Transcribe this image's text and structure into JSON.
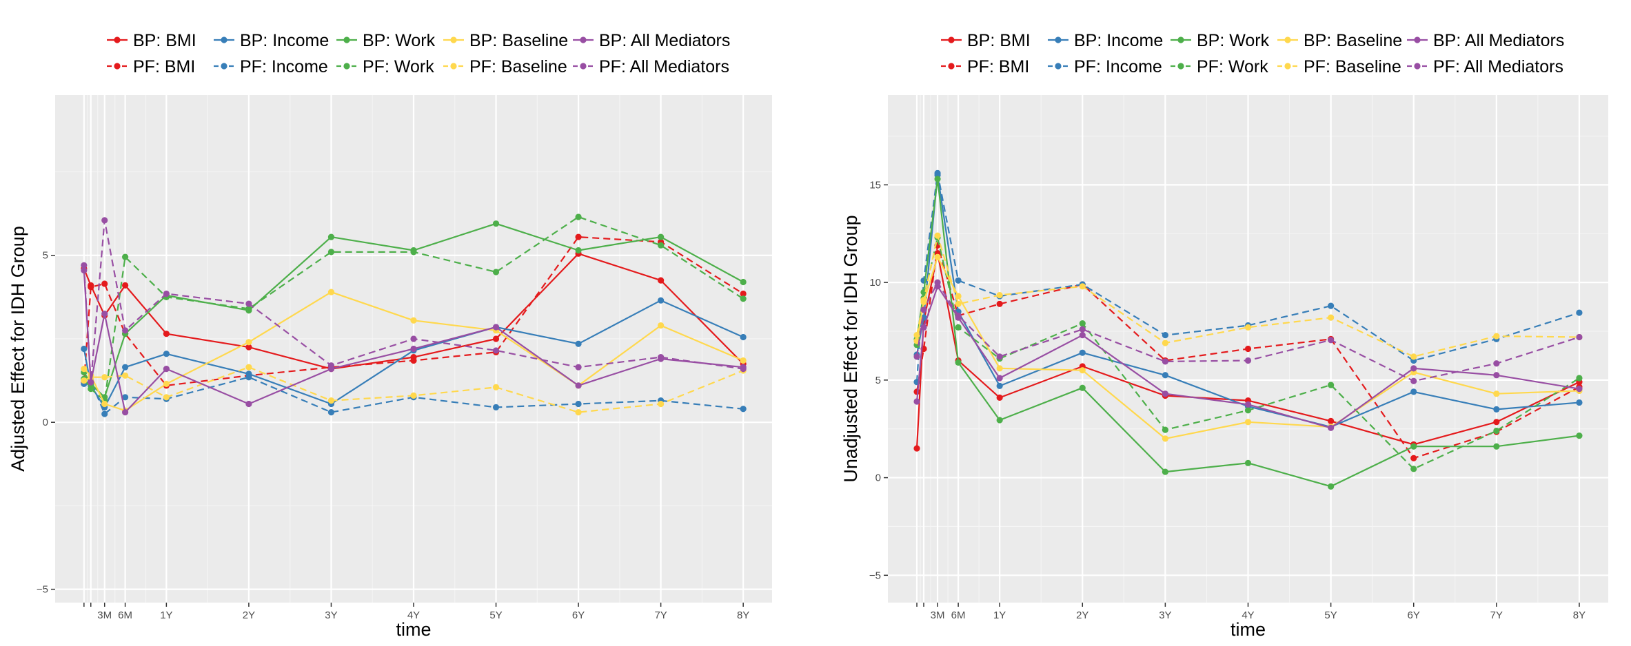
{
  "colors": {
    "BMI": "#e41a1c",
    "Income": "#377eb8",
    "Work": "#4daf4a",
    "Baseline": "#ffd84d",
    "All Mediators": "#984ea3",
    "panel": "#ebebeb",
    "grid_major": "#ffffff",
    "grid_minor": "#f5f5f5"
  },
  "chart_data": [
    {
      "type": "line",
      "title": "",
      "xlabel": "time",
      "ylabel": "Adjusted Effect for IDH Group",
      "x": [
        0.0,
        0.083,
        0.25,
        0.5,
        1,
        2,
        3,
        4,
        5,
        6,
        7,
        8
      ],
      "x_ticks": [
        {
          "x": 0,
          "label": ""
        },
        {
          "x": 0.083,
          "label": ""
        },
        {
          "x": 0.25,
          "label": "3M"
        },
        {
          "x": 0.5,
          "label": "6M"
        },
        {
          "x": 1,
          "label": "1Y"
        },
        {
          "x": 2,
          "label": "2Y"
        },
        {
          "x": 3,
          "label": "3Y"
        },
        {
          "x": 4,
          "label": "4Y"
        },
        {
          "x": 5,
          "label": "5Y"
        },
        {
          "x": 6,
          "label": "6Y"
        },
        {
          "x": 7,
          "label": "7Y"
        },
        {
          "x": 8,
          "label": "8Y"
        }
      ],
      "y_ticks": [
        -5,
        0,
        5
      ],
      "xlim": [
        -0.35,
        8.35
      ],
      "ylim": [
        -5.4,
        9.8
      ],
      "legend": [
        [
          "BP: BMI",
          "BP: Income",
          "BP: Work",
          "BP: Baseline",
          "BP: All Mediators"
        ],
        [
          "PF: BMI",
          "PF: Income",
          "PF: Work",
          "PF: Baseline",
          "PF: All Mediators"
        ]
      ],
      "series": [
        {
          "name": "BP: BMI",
          "group": "BMI",
          "dash": false,
          "values": [
            4.6,
            4.1,
            3.2,
            4.1,
            2.65,
            2.25,
            1.6,
            1.95,
            2.5,
            5.05,
            4.25,
            1.75
          ]
        },
        {
          "name": "PF: BMI",
          "group": "BMI",
          "dash": true,
          "values": [
            1.2,
            4.05,
            4.15,
            2.65,
            1.1,
            1.4,
            1.65,
            1.85,
            2.1,
            5.55,
            5.4,
            3.85
          ]
        },
        {
          "name": "BP: Income",
          "group": "Income",
          "dash": false,
          "values": [
            2.2,
            1.1,
            0.45,
            1.65,
            2.05,
            1.45,
            0.55,
            2.15,
            2.85,
            2.35,
            3.65,
            2.55
          ]
        },
        {
          "name": "PF: Income",
          "group": "Income",
          "dash": true,
          "values": [
            1.15,
            1.25,
            0.25,
            0.75,
            0.7,
            1.35,
            0.3,
            0.75,
            0.45,
            0.55,
            0.65,
            0.4
          ]
        },
        {
          "name": "BP: Work",
          "group": "Work",
          "dash": false,
          "values": [
            1.5,
            1.15,
            0.75,
            2.65,
            3.8,
            3.35,
            5.55,
            5.15,
            5.95,
            5.15,
            5.55,
            4.2
          ]
        },
        {
          "name": "PF: Work",
          "group": "Work",
          "dash": true,
          "values": [
            1.3,
            1.0,
            0.65,
            4.95,
            3.75,
            3.4,
            5.1,
            5.1,
            4.5,
            6.15,
            5.3,
            3.7
          ]
        },
        {
          "name": "BP: Baseline",
          "group": "Baseline",
          "dash": false,
          "values": [
            1.6,
            1.4,
            0.55,
            0.35,
            1.15,
            2.4,
            3.9,
            3.05,
            2.75,
            1.1,
            2.9,
            1.85
          ]
        },
        {
          "name": "PF: Baseline",
          "group": "Baseline",
          "dash": true,
          "values": [
            1.25,
            1.35,
            1.35,
            1.4,
            0.75,
            1.65,
            0.65,
            0.8,
            1.05,
            0.3,
            0.55,
            1.55
          ]
        },
        {
          "name": "BP: All Mediators",
          "group": "All Mediators",
          "dash": false,
          "values": [
            4.55,
            1.2,
            3.25,
            0.3,
            1.6,
            0.55,
            1.6,
            2.2,
            2.85,
            1.1,
            1.9,
            1.65
          ]
        },
        {
          "name": "PF: All Mediators",
          "group": "All Mediators",
          "dash": true,
          "values": [
            4.7,
            1.2,
            6.05,
            2.75,
            3.85,
            3.55,
            1.7,
            2.5,
            2.15,
            1.65,
            1.95,
            1.6
          ]
        }
      ]
    },
    {
      "type": "line",
      "title": "",
      "xlabel": "time",
      "ylabel": "Unadjusted Effect for IDH Group",
      "x": [
        0.0,
        0.083,
        0.25,
        0.5,
        1,
        2,
        3,
        4,
        5,
        6,
        7,
        8
      ],
      "x_ticks": [
        {
          "x": 0,
          "label": ""
        },
        {
          "x": 0.083,
          "label": ""
        },
        {
          "x": 0.25,
          "label": "3M"
        },
        {
          "x": 0.5,
          "label": "6M"
        },
        {
          "x": 1,
          "label": "1Y"
        },
        {
          "x": 2,
          "label": "2Y"
        },
        {
          "x": 3,
          "label": "3Y"
        },
        {
          "x": 4,
          "label": "4Y"
        },
        {
          "x": 5,
          "label": "5Y"
        },
        {
          "x": 6,
          "label": "6Y"
        },
        {
          "x": 7,
          "label": "7Y"
        },
        {
          "x": 8,
          "label": "8Y"
        }
      ],
      "y_ticks": [
        -5,
        0,
        5,
        10,
        15
      ],
      "xlim": [
        -0.35,
        8.35
      ],
      "ylim": [
        -6.4,
        19.6
      ],
      "legend": [
        [
          "BP: BMI",
          "BP: Income",
          "BP: Work",
          "BP: Baseline",
          "BP: All Mediators"
        ],
        [
          "PF: BMI",
          "PF: Income",
          "PF: Work",
          "PF: Baseline",
          "PF: All Mediators"
        ]
      ],
      "series": [
        {
          "name": "BP: BMI",
          "group": "BMI",
          "dash": false,
          "values": [
            1.5,
            8.0,
            11.5,
            6.0,
            4.1,
            5.7,
            4.2,
            3.95,
            2.9,
            1.7,
            2.85,
            4.9
          ]
        },
        {
          "name": "PF: BMI",
          "group": "BMI",
          "dash": true,
          "values": [
            4.4,
            6.6,
            11.9,
            8.3,
            8.9,
            9.9,
            6.0,
            6.6,
            7.1,
            1.0,
            2.35,
            4.65
          ]
        },
        {
          "name": "BP: Income",
          "group": "Income",
          "dash": false,
          "values": [
            6.3,
            8.2,
            15.5,
            8.5,
            4.7,
            6.4,
            5.25,
            3.65,
            2.6,
            4.4,
            3.5,
            3.85
          ]
        },
        {
          "name": "PF: Income",
          "group": "Income",
          "dash": true,
          "values": [
            4.9,
            10.1,
            15.6,
            10.1,
            9.3,
            9.9,
            7.3,
            7.8,
            8.8,
            6.0,
            7.1,
            8.45
          ]
        },
        {
          "name": "BP: Work",
          "group": "Work",
          "dash": false,
          "values": [
            7.1,
            9.5,
            15.3,
            5.9,
            2.95,
            4.6,
            0.3,
            0.75,
            -0.45,
            1.6,
            1.6,
            2.15
          ]
        },
        {
          "name": "PF: Work",
          "group": "Work",
          "dash": true,
          "values": [
            6.8,
            9.2,
            12.3,
            7.7,
            6.1,
            7.9,
            2.45,
            3.45,
            4.75,
            0.45,
            2.4,
            5.1
          ]
        },
        {
          "name": "BP: Baseline",
          "group": "Baseline",
          "dash": false,
          "values": [
            7.0,
            9.0,
            11.3,
            9.3,
            5.6,
            5.5,
            2.0,
            2.85,
            2.6,
            5.4,
            4.3,
            4.45
          ]
        },
        {
          "name": "PF: Baseline",
          "group": "Baseline",
          "dash": true,
          "values": [
            7.3,
            9.1,
            12.4,
            8.9,
            9.35,
            9.8,
            6.9,
            7.7,
            8.2,
            6.2,
            7.25,
            7.2
          ]
        },
        {
          "name": "BP: All Mediators",
          "group": "All Mediators",
          "dash": false,
          "values": [
            3.9,
            7.7,
            9.8,
            8.2,
            5.1,
            7.3,
            4.3,
            3.75,
            2.55,
            5.6,
            5.25,
            4.55
          ]
        },
        {
          "name": "PF: All Mediators",
          "group": "All Mediators",
          "dash": true,
          "values": [
            6.2,
            8.6,
            10.0,
            8.3,
            6.2,
            7.6,
            5.95,
            6.0,
            7.05,
            4.95,
            5.85,
            7.2
          ]
        }
      ]
    }
  ]
}
